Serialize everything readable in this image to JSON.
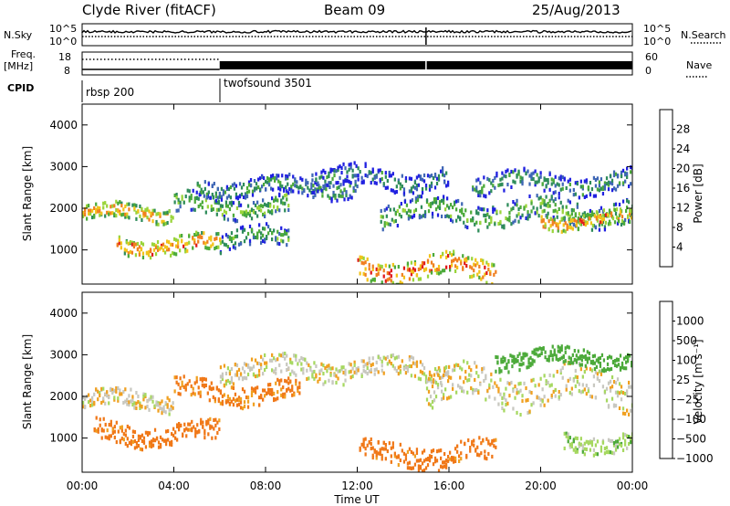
{
  "header": {
    "station": "Clyde River (fitACF)",
    "beam": "Beam 09",
    "date": "25/Aug/2013"
  },
  "top_panels": {
    "nsky": {
      "label": "N.Sky",
      "left_ticks": [
        "10^5",
        "10^0"
      ]
    },
    "nsearch": {
      "label": "N.Search",
      "right_ticks": [
        "10^5",
        "10^0"
      ]
    },
    "freq": {
      "label_line1": "Freq.",
      "label_line2": "[MHz]",
      "left_ticks": [
        "18",
        "8"
      ]
    },
    "nave": {
      "label": "Nave",
      "right_ticks": [
        "60",
        "0"
      ]
    },
    "cpid": {
      "label": "CPID",
      "segments": [
        {
          "name": "rbsp 200",
          "start_h": 0,
          "end_h": 6
        },
        {
          "name": "twofsound 3501",
          "start_h": 6,
          "end_h": 24
        }
      ]
    }
  },
  "chart_data": [
    {
      "type": "heatmap",
      "title": "",
      "xlabel": "Time UT",
      "ylabel": "Slant Range [km]",
      "xlim": [
        0,
        24
      ],
      "ylim": [
        180,
        4500
      ],
      "x_ticks": [
        "00:00",
        "04:00",
        "08:00",
        "12:00",
        "16:00",
        "20:00",
        "00:00"
      ],
      "y_ticks": [
        1000,
        2000,
        3000,
        4000
      ],
      "colorbar": {
        "label": "Power [dB]",
        "range": [
          0,
          32
        ],
        "ticks": [
          "4",
          "8",
          "12",
          "16",
          "20",
          "24",
          "28"
        ],
        "colors": [
          "#2020e0",
          "#3f67b5",
          "#2e8c5a",
          "#4caa3a",
          "#9ad43a",
          "#f2c31a",
          "#f08020",
          "#e01a1a"
        ]
      },
      "bands": [
        {
          "start_h": 0.0,
          "end_h": 4.0,
          "range_km": 1880,
          "width_km": 220,
          "value": 22
        },
        {
          "start_h": 1.5,
          "end_h": 6.0,
          "range_km": 1100,
          "width_km": 260,
          "value": 24
        },
        {
          "start_h": 4.0,
          "end_h": 9.0,
          "range_km": 2050,
          "width_km": 300,
          "value": 14
        },
        {
          "start_h": 5.0,
          "end_h": 12.0,
          "range_km": 2500,
          "width_km": 260,
          "value": 10
        },
        {
          "start_h": 6.0,
          "end_h": 9.0,
          "range_km": 1250,
          "width_km": 300,
          "value": 12
        },
        {
          "start_h": 10.0,
          "end_h": 16.0,
          "range_km": 2700,
          "width_km": 300,
          "value": 8
        },
        {
          "start_h": 12.0,
          "end_h": 18.0,
          "range_km": 550,
          "width_km": 320,
          "value": 26
        },
        {
          "start_h": 13.0,
          "end_h": 24.0,
          "range_km": 1900,
          "width_km": 350,
          "value": 14
        },
        {
          "start_h": 17.0,
          "end_h": 24.0,
          "range_km": 2600,
          "width_km": 300,
          "value": 10
        },
        {
          "start_h": 20.0,
          "end_h": 24.0,
          "range_km": 1700,
          "width_km": 220,
          "value": 24
        }
      ]
    },
    {
      "type": "heatmap",
      "title": "",
      "xlabel": "Time UT",
      "ylabel": "Slant Range [km]",
      "xlim": [
        0,
        24
      ],
      "ylim": [
        180,
        4500
      ],
      "x_ticks": [
        "00:00",
        "04:00",
        "08:00",
        "12:00",
        "16:00",
        "20:00",
        "00:00"
      ],
      "y_ticks": [
        1000,
        2000,
        3000,
        4000
      ],
      "colorbar": {
        "label": "Velocity [m s⁻¹]",
        "ticks": [
          "1000",
          "500",
          "100",
          "25",
          "−25",
          "−100",
          "−500",
          "−1000"
        ],
        "colors": [
          "#2040c0",
          "#3a8060",
          "#4caa3a",
          "#a6d860",
          "#c8c8c0",
          "#f0a020",
          "#f07818",
          "#e01a1a"
        ]
      },
      "bands": [
        {
          "start_h": 0.0,
          "end_h": 4.0,
          "range_km": 1900,
          "width_km": 260,
          "value": -10
        },
        {
          "start_h": 0.5,
          "end_h": 6.0,
          "range_km": 1100,
          "width_km": 300,
          "value": -150
        },
        {
          "start_h": 4.0,
          "end_h": 9.5,
          "range_km": 2100,
          "width_km": 300,
          "value": -120
        },
        {
          "start_h": 6.0,
          "end_h": 16.0,
          "range_km": 2650,
          "width_km": 300,
          "value": 0
        },
        {
          "start_h": 12.0,
          "end_h": 18.0,
          "range_km": 600,
          "width_km": 330,
          "value": -150
        },
        {
          "start_h": 15.0,
          "end_h": 24.0,
          "range_km": 2200,
          "width_km": 500,
          "value": 0
        },
        {
          "start_h": 18.0,
          "end_h": 24.0,
          "range_km": 2900,
          "width_km": 250,
          "value": 300
        },
        {
          "start_h": 21.0,
          "end_h": 24.0,
          "range_km": 900,
          "width_km": 250,
          "value": 60
        }
      ]
    }
  ]
}
